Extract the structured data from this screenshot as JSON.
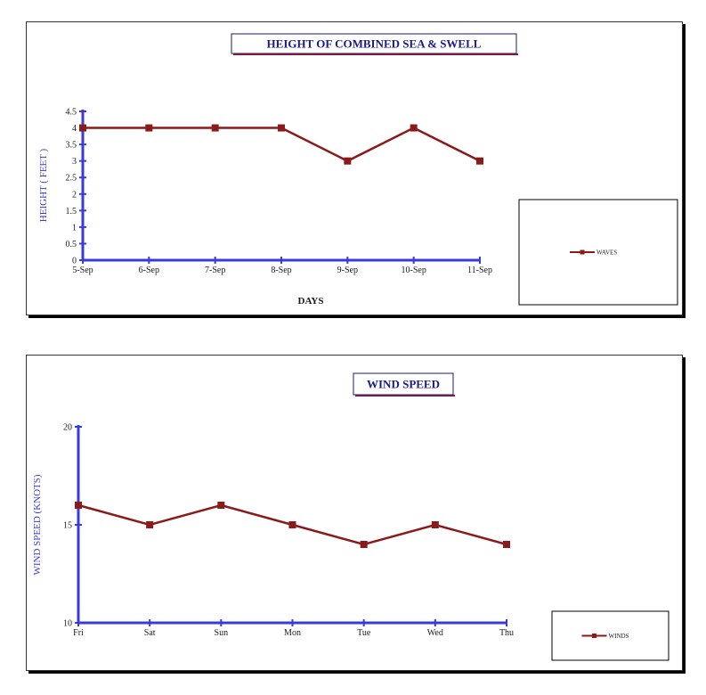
{
  "colors": {
    "axis": "#3a3adc",
    "series": "#8b1a1a",
    "title": "#1a1a8c"
  },
  "chart_data": [
    {
      "type": "line",
      "title": "HEIGHT OF COMBINED SEA & SWELL",
      "xlabel": "DAYS",
      "ylabel": "HEIGHT ( FEET )",
      "categories": [
        "5-Sep",
        "6-Sep",
        "7-Sep",
        "8-Sep",
        "9-Sep",
        "10-Sep",
        "11-Sep"
      ],
      "yticks": [
        "0",
        "0.5",
        "1",
        "1.5",
        "2",
        "2.5",
        "3",
        "3.5",
        "4",
        "4.5"
      ],
      "ylim": [
        0,
        4.5
      ],
      "grid": false,
      "legend": "right",
      "series": [
        {
          "name": "WAVES",
          "values": [
            4,
            4,
            4,
            4,
            3,
            4,
            3
          ]
        }
      ]
    },
    {
      "type": "line",
      "title": "WIND SPEED",
      "xlabel": "",
      "ylabel": "WIND SPEED (KNOTS)",
      "categories": [
        "Fri",
        "Sat",
        "Sun",
        "Mon",
        "Tue",
        "Wed",
        "Thu"
      ],
      "yticks": [
        "10",
        "15",
        "20"
      ],
      "ylim": [
        10,
        20
      ],
      "grid": false,
      "legend": "right",
      "series": [
        {
          "name": "WINDS",
          "values": [
            16,
            15,
            16,
            15,
            14,
            15,
            14
          ]
        }
      ]
    }
  ]
}
